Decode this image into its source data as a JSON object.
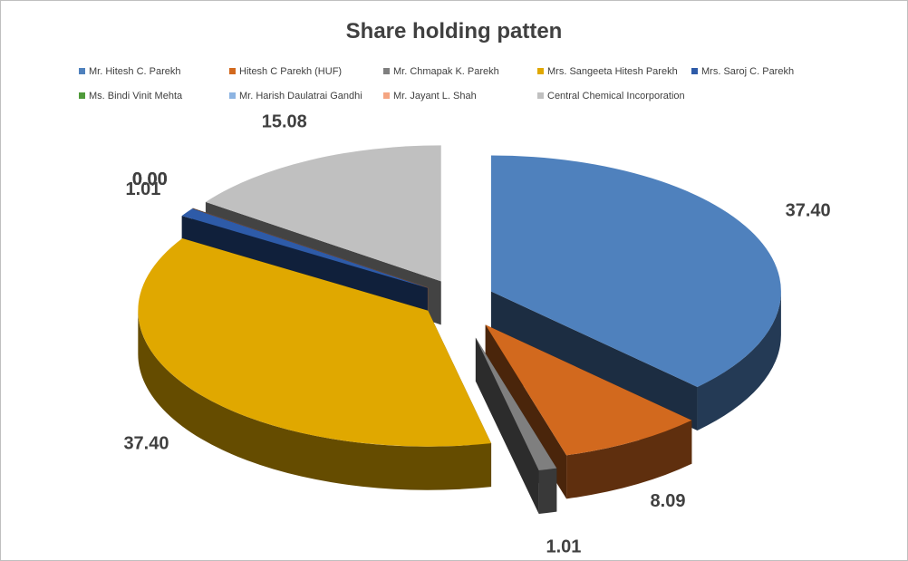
{
  "chart_data": {
    "type": "pie",
    "style": "3d-exploded",
    "title": "Share holding patten",
    "legend_position": "top",
    "slices": [
      {
        "name": "Mr. Hitesh C. Parekh",
        "value": 37.4,
        "label": "37.40",
        "color": "#4f81bd"
      },
      {
        "name": "Hitesh C Parekh (HUF)",
        "value": 8.09,
        "label": "8.09",
        "color": "#d2691e"
      },
      {
        "name": "Mr. Chmapak K. Parekh",
        "value": 1.01,
        "label": "1.01",
        "color": "#7f7f7f"
      },
      {
        "name": "Mrs. Sangeeta Hitesh Parekh",
        "value": 37.4,
        "label": "37.40",
        "color": "#e0a800"
      },
      {
        "name": "Mrs. Saroj C. Parekh",
        "value": 1.01,
        "label": "1.01",
        "color": "#2e5ba8"
      },
      {
        "name": "Ms. Bindi Vinit Mehta",
        "value": 0.0,
        "label": "0.00",
        "color": "#4f9a3a"
      },
      {
        "name": "Mr. Harish Daulatrai Gandhi",
        "value": 0.0,
        "label": "0.00",
        "color": "#8db4e2"
      },
      {
        "name": "Mr. Jayant L. Shah",
        "value": 0.0,
        "label": "0.00",
        "color": "#f4a582"
      },
      {
        "name": "Central Chemical Incorporation",
        "value": 15.08,
        "label": "15.08",
        "color": "#c0c0c0"
      }
    ]
  }
}
